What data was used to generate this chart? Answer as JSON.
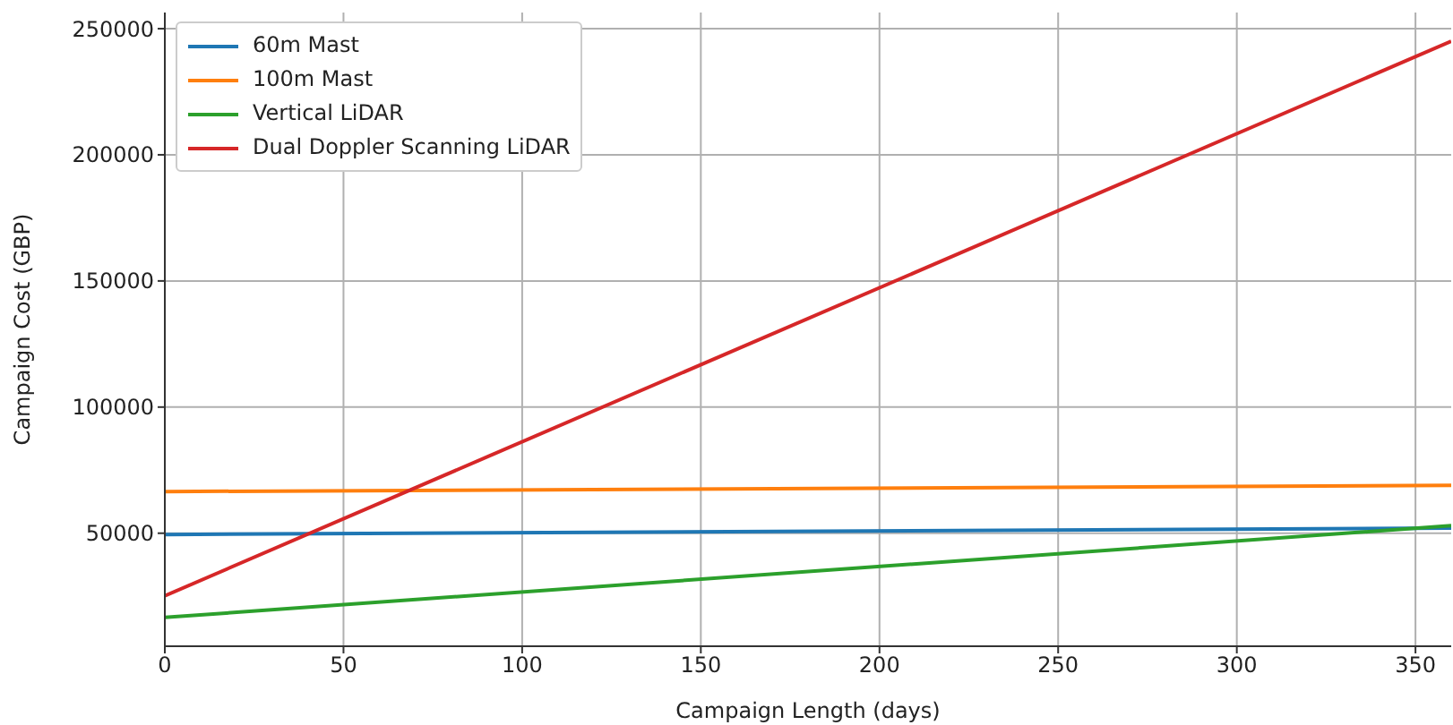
{
  "chart_data": {
    "type": "line",
    "xlabel": "Campaign Length (days)",
    "ylabel": "Campaign Cost (GBP)",
    "x": [
      0,
      360
    ],
    "series": [
      {
        "name": "60m Mast",
        "color": "#1f77b4",
        "values": [
          49500,
          52000
        ]
      },
      {
        "name": "100m Mast",
        "color": "#ff7f0e",
        "values": [
          66500,
          69000
        ]
      },
      {
        "name": "Vertical LiDAR",
        "color": "#2ca02c",
        "values": [
          16600,
          53000
        ]
      },
      {
        "name": "Dual Doppler Scanning LiDAR",
        "color": "#d62728",
        "values": [
          25200,
          245000
        ]
      }
    ],
    "xlim": [
      0,
      360
    ],
    "xticks": [
      0,
      50,
      100,
      150,
      200,
      250,
      300,
      350
    ],
    "ylim": [
      5200,
      256400
    ],
    "yticks": [
      50000,
      100000,
      150000,
      200000,
      250000
    ],
    "grid": true,
    "legend": "top left",
    "marker": "none",
    "line_style": "solid"
  }
}
